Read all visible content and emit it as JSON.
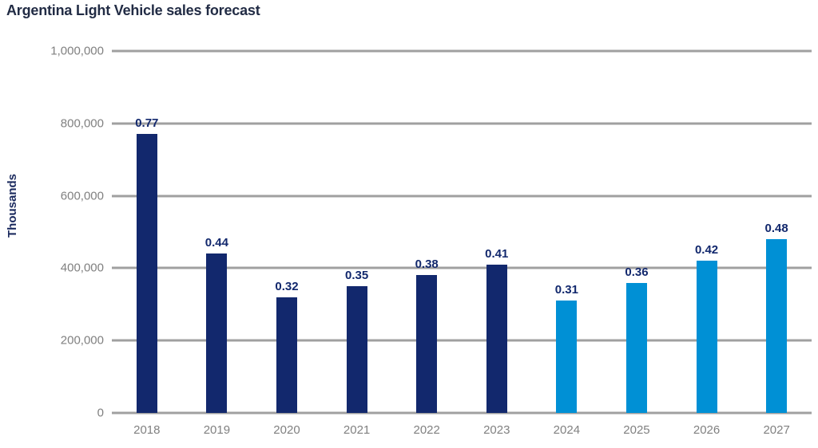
{
  "chart_data": {
    "type": "bar",
    "title": "Argentina Light Vehicle sales forecast",
    "ylabel": "Thousands",
    "xlabel": "",
    "categories": [
      "2018",
      "2019",
      "2020",
      "2021",
      "2022",
      "2023",
      "2024",
      "2025",
      "2026",
      "2027"
    ],
    "values": [
      770000,
      440000,
      320000,
      350000,
      380000,
      410000,
      310000,
      360000,
      420000,
      480000
    ],
    "bar_labels": [
      "0.77",
      "0.44",
      "0.32",
      "0.35",
      "0.38",
      "0.41",
      "0.31",
      "0.36",
      "0.42",
      "0.48"
    ],
    "bar_colors": [
      "#12286d",
      "#12286d",
      "#12286d",
      "#12286d",
      "#12286d",
      "#12286d",
      "#0090d5",
      "#0090d5",
      "#0090d5",
      "#0090d5"
    ],
    "y_ticks": [
      "0",
      "200,000",
      "400,000",
      "600,000",
      "800,000",
      "1,000,000"
    ],
    "ylim": [
      0,
      1000000
    ],
    "grid": true,
    "legend": "none",
    "colors": {
      "historical_bar": "#12286d",
      "forecast_bar": "#0090d5",
      "gridline": "#a0a0a0",
      "axis_text": "#808080",
      "title_text": "#222c45",
      "value_label_text": "#12286d"
    }
  }
}
